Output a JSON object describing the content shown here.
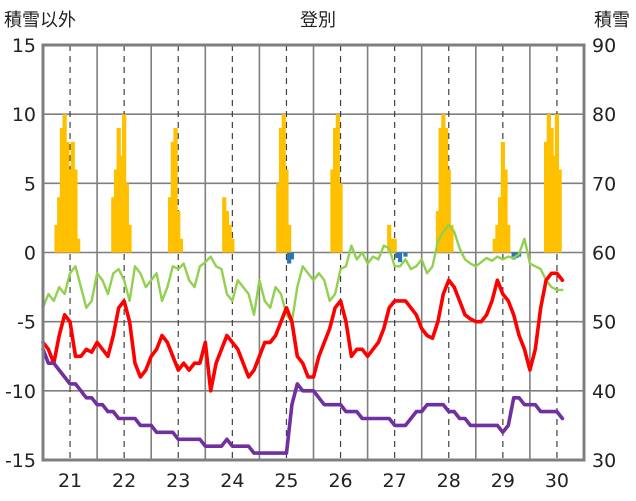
{
  "chart_data": {
    "type": "line",
    "title": "登別",
    "ylabel_left": "積雪以外",
    "ylabel_right": "積雪",
    "xlim": [
      20.5,
      30.5
    ],
    "ylim_left": [
      -15,
      15
    ],
    "ylim_right": [
      30,
      90
    ],
    "yticks_left": [
      "15",
      "10",
      "5",
      "0",
      "-5",
      "-10",
      "-15"
    ],
    "yticks_right": [
      "90",
      "80",
      "70",
      "60",
      "50",
      "40",
      "30"
    ],
    "xticks": [
      "21",
      "22",
      "23",
      "24",
      "25",
      "26",
      "27",
      "28",
      "29",
      "30"
    ],
    "grid": true,
    "colors": {
      "bars_pos": "#ffc000",
      "bars_neg": "#2e75b6",
      "green": "#92d050",
      "red": "#ff0000",
      "purple": "#7030a0",
      "frame": "#7f7f7f"
    },
    "series": [
      {
        "color": "#ffc000",
        "kind": "bar",
        "axis": "left",
        "x": [
          20.75,
          20.8,
          20.85,
          20.9,
          20.95,
          21.0,
          21.05,
          21.1,
          21.15,
          21.8,
          21.85,
          21.9,
          21.95,
          22.0,
          22.05,
          22.1,
          22.85,
          22.9,
          22.95,
          23.0,
          23.05,
          23.85,
          23.9,
          23.95,
          24.0,
          24.85,
          24.9,
          24.95,
          25.0,
          25.05,
          25.85,
          25.9,
          25.95,
          26.0,
          26.9,
          26.95,
          27.0,
          27.8,
          27.85,
          27.9,
          27.95,
          28.0,
          28.05,
          28.85,
          28.9,
          28.95,
          29.0,
          29.05,
          29.1,
          29.8,
          29.85,
          29.9,
          29.95,
          30.0,
          30.05
        ],
        "values": [
          2,
          4,
          9,
          10,
          8,
          6,
          8,
          6,
          1,
          4,
          6,
          9,
          7,
          10,
          5,
          2,
          4,
          8,
          9,
          3,
          1,
          4,
          3,
          2,
          1,
          5,
          9,
          10,
          6,
          2,
          6,
          9,
          10,
          5,
          2,
          1,
          1,
          3,
          9,
          10,
          9,
          6,
          2,
          1,
          2,
          4,
          8,
          6,
          2,
          8,
          10,
          9,
          7,
          10,
          6
        ]
      },
      {
        "color": "#2e75b6",
        "kind": "bar",
        "axis": "left",
        "x": [
          25.05,
          25.1,
          27.05,
          27.1,
          27.2,
          29.2,
          29.25,
          29.3
        ],
        "values": [
          -0.8,
          -0.5,
          -0.4,
          -0.7,
          -0.3,
          -0.5,
          -0.4,
          -0.3
        ]
      },
      {
        "color": "#92d050",
        "kind": "line",
        "axis": "left",
        "x": [
          20.5,
          20.6,
          20.7,
          20.8,
          20.9,
          21.0,
          21.1,
          21.2,
          21.3,
          21.4,
          21.5,
          21.6,
          21.7,
          21.8,
          21.9,
          22.0,
          22.1,
          22.2,
          22.3,
          22.4,
          22.5,
          22.6,
          22.7,
          22.8,
          22.9,
          23.0,
          23.1,
          23.2,
          23.3,
          23.4,
          23.5,
          23.6,
          23.7,
          23.8,
          23.9,
          24.0,
          24.1,
          24.2,
          24.3,
          24.4,
          24.5,
          24.6,
          24.7,
          24.8,
          24.9,
          25.0,
          25.1,
          25.2,
          25.3,
          25.4,
          25.5,
          25.6,
          25.7,
          25.8,
          25.9,
          26.0,
          26.1,
          26.2,
          26.3,
          26.4,
          26.5,
          26.6,
          26.7,
          26.8,
          26.9,
          27.0,
          27.1,
          27.2,
          27.3,
          27.4,
          27.5,
          27.6,
          27.7,
          27.8,
          27.9,
          28.0,
          28.1,
          28.2,
          28.3,
          28.4,
          28.5,
          28.6,
          28.7,
          28.8,
          28.9,
          29.0,
          29.1,
          29.2,
          29.3,
          29.4,
          29.5,
          29.6,
          29.7,
          29.8,
          29.9,
          30.0,
          30.1
        ],
        "values": [
          -4,
          -3,
          -3.5,
          -2.5,
          -3,
          -1.5,
          -1,
          -2.5,
          -4,
          -3.5,
          -1.5,
          -2,
          -3,
          -1.5,
          -1.2,
          -2,
          -3.5,
          -1,
          -1.5,
          -2.5,
          -2,
          -1.5,
          -3.5,
          -2.5,
          -1,
          -1.2,
          -0.8,
          -2,
          -2.5,
          -1,
          -0.7,
          -0.3,
          -1,
          -1.2,
          -3,
          -3.5,
          -2,
          -2.5,
          -3,
          -4.5,
          -2,
          -3.5,
          -4,
          -2.5,
          -3,
          -4.5,
          -5,
          -2.5,
          -1,
          -1.5,
          -2,
          -1.5,
          -2,
          -3.5,
          -3,
          -1.2,
          -1,
          0.5,
          -0.5,
          0,
          -0.8,
          -0.3,
          -0.5,
          0.5,
          0.3,
          -1,
          -1,
          -0.5,
          -1.2,
          -1,
          -0.5,
          -1.5,
          -1,
          0.8,
          1.5,
          2,
          1.5,
          0.3,
          -0.5,
          -0.8,
          -1,
          -0.7,
          -0.4,
          -0.6,
          -0.3,
          -0.5,
          -0.3,
          -0.4,
          -0.1,
          1,
          -0.8,
          -1,
          -1.2,
          -2,
          -2.5,
          -2.7,
          -2.7
        ]
      },
      {
        "color": "#ff0000",
        "kind": "line",
        "axis": "left",
        "x": [
          20.5,
          20.6,
          20.7,
          20.8,
          20.9,
          21.0,
          21.1,
          21.2,
          21.3,
          21.4,
          21.5,
          21.6,
          21.7,
          21.8,
          21.9,
          22.0,
          22.1,
          22.2,
          22.3,
          22.4,
          22.5,
          22.6,
          22.7,
          22.8,
          22.9,
          23.0,
          23.1,
          23.2,
          23.3,
          23.4,
          23.5,
          23.6,
          23.7,
          23.8,
          23.9,
          24.0,
          24.1,
          24.2,
          24.3,
          24.4,
          24.5,
          24.6,
          24.7,
          24.8,
          24.9,
          25.0,
          25.1,
          25.2,
          25.3,
          25.4,
          25.5,
          25.6,
          25.7,
          25.8,
          25.9,
          26.0,
          26.1,
          26.2,
          26.3,
          26.4,
          26.5,
          26.6,
          26.7,
          26.8,
          26.9,
          27.0,
          27.1,
          27.2,
          27.3,
          27.4,
          27.5,
          27.6,
          27.7,
          27.8,
          27.9,
          28.0,
          28.1,
          28.2,
          28.3,
          28.4,
          28.5,
          28.6,
          28.7,
          28.8,
          28.9,
          29.0,
          29.1,
          29.2,
          29.3,
          29.4,
          29.5,
          29.6,
          29.7,
          29.8,
          29.9,
          30.0,
          30.1
        ],
        "values": [
          -6.5,
          -7,
          -8,
          -6,
          -4.5,
          -5,
          -7.5,
          -7.5,
          -7,
          -7.2,
          -6.5,
          -7,
          -7.5,
          -6,
          -4,
          -3.5,
          -5,
          -8,
          -9,
          -8.5,
          -7.5,
          -7,
          -6,
          -6.5,
          -7.5,
          -8.5,
          -8,
          -8.5,
          -8,
          -8,
          -6.5,
          -10,
          -8,
          -7,
          -6,
          -6.5,
          -7,
          -8,
          -9,
          -8.5,
          -7.5,
          -6.5,
          -6.5,
          -6,
          -5,
          -4,
          -5,
          -7.5,
          -8,
          -9,
          -9,
          -7.5,
          -6.5,
          -5.5,
          -4,
          -3.5,
          -5,
          -7.5,
          -7,
          -7,
          -7.5,
          -7,
          -6.5,
          -5.5,
          -4,
          -3.5,
          -3.5,
          -3.5,
          -4,
          -4.5,
          -5.5,
          -6,
          -6.2,
          -5,
          -3,
          -2,
          -2.5,
          -3.5,
          -4.5,
          -4.8,
          -5,
          -5,
          -4.5,
          -3.5,
          -2,
          -3,
          -3.5,
          -4.5,
          -6,
          -7,
          -8.5,
          -7,
          -4,
          -2,
          -1.5,
          -1.5,
          -2
        ]
      },
      {
        "color": "#7030a0",
        "kind": "line",
        "axis": "left",
        "x": [
          20.5,
          20.6,
          20.7,
          20.8,
          20.9,
          21.0,
          21.1,
          21.2,
          21.3,
          21.4,
          21.5,
          21.6,
          21.7,
          21.8,
          21.9,
          22.0,
          22.1,
          22.2,
          22.3,
          22.4,
          22.5,
          22.6,
          22.7,
          22.8,
          22.9,
          23.0,
          23.1,
          23.2,
          23.3,
          23.4,
          23.5,
          23.6,
          23.7,
          23.8,
          23.9,
          24.0,
          24.1,
          24.2,
          24.3,
          24.4,
          24.5,
          24.6,
          24.7,
          24.8,
          24.9,
          25.0,
          25.1,
          25.2,
          25.3,
          25.4,
          25.5,
          25.6,
          25.7,
          25.8,
          25.9,
          26.0,
          26.1,
          26.2,
          26.3,
          26.4,
          26.5,
          26.6,
          26.7,
          26.8,
          26.9,
          27.0,
          27.1,
          27.2,
          27.3,
          27.4,
          27.5,
          27.6,
          27.7,
          27.8,
          27.9,
          28.0,
          28.1,
          28.2,
          28.3,
          28.4,
          28.5,
          28.6,
          28.7,
          28.8,
          28.9,
          29.0,
          29.1,
          29.2,
          29.3,
          29.4,
          29.5,
          29.6,
          29.7,
          29.8,
          29.9,
          30.0,
          30.1
        ],
        "values": [
          -7,
          -8,
          -8,
          -8.5,
          -9,
          -9.5,
          -9.5,
          -10,
          -10.5,
          -10.5,
          -11,
          -11,
          -11.5,
          -11.5,
          -12,
          -12,
          -12,
          -12,
          -12.5,
          -12.5,
          -12.5,
          -13,
          -13,
          -13,
          -13,
          -13.5,
          -13.5,
          -13.5,
          -13.5,
          -13.5,
          -14,
          -14,
          -14,
          -14,
          -13.5,
          -14,
          -14,
          -14,
          -14,
          -14.5,
          -14.5,
          -14.5,
          -14.5,
          -14.5,
          -14.5,
          -14.5,
          -11,
          -9.5,
          -10,
          -10,
          -10,
          -10.5,
          -11,
          -11,
          -11,
          -11,
          -11.5,
          -11.5,
          -11.5,
          -12,
          -12,
          -12,
          -12,
          -12,
          -12,
          -12.5,
          -12.5,
          -12.5,
          -12,
          -11.5,
          -11.5,
          -11,
          -11,
          -11,
          -11,
          -11.5,
          -11.5,
          -12,
          -12,
          -12.5,
          -12.5,
          -12.5,
          -12.5,
          -12.5,
          -12.5,
          -13,
          -12.5,
          -10.5,
          -10.5,
          -11,
          -11,
          -11,
          -11.5,
          -11.5,
          -11.5,
          -11.5,
          -12
        ]
      }
    ]
  }
}
